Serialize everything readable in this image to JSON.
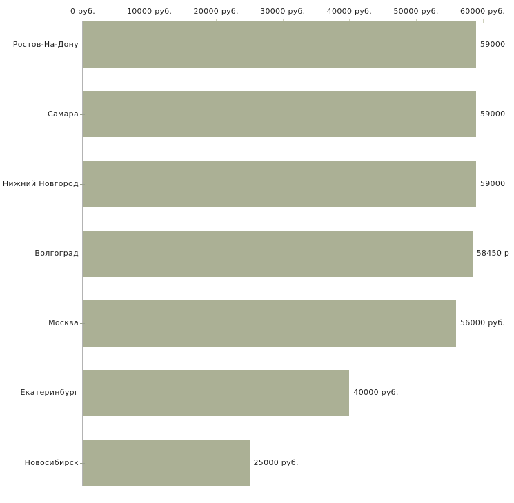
{
  "chart_data": {
    "type": "bar",
    "orientation": "horizontal",
    "title": "",
    "categories": [
      "Ростов-На-Дону",
      "Самара",
      "Нижний Новгород",
      "Волгоград",
      "Москва",
      "Екатеринбург",
      "Новосибирск"
    ],
    "values": [
      59000,
      59000,
      59000,
      58450,
      56000,
      40000,
      25000
    ],
    "value_labels": [
      "59000",
      "59000",
      "59000",
      "58450 р",
      "56000 руб.",
      "40000 руб.",
      "25000 руб."
    ],
    "unit": "руб.",
    "xlabel": "",
    "ylabel": "",
    "xlim": [
      0,
      60000
    ],
    "x_ticks": [
      {
        "value": 0,
        "label": "0 руб."
      },
      {
        "value": 10000,
        "label": "10000 руб."
      },
      {
        "value": 20000,
        "label": "20000 руб."
      },
      {
        "value": 30000,
        "label": "30000 руб."
      },
      {
        "value": 40000,
        "label": "40000 руб."
      },
      {
        "value": 50000,
        "label": "50000 руб."
      },
      {
        "value": 60000,
        "label": "60000 руб."
      }
    ],
    "grid": false,
    "legend": false,
    "colors": {
      "bar": "#abb095",
      "axis_line": "#b3b3b3",
      "x_tick_mark": "#cdd0bc",
      "y_tick_mark": "#9aa08f",
      "text": "#1f1f1f",
      "background": "#ffffff"
    }
  }
}
